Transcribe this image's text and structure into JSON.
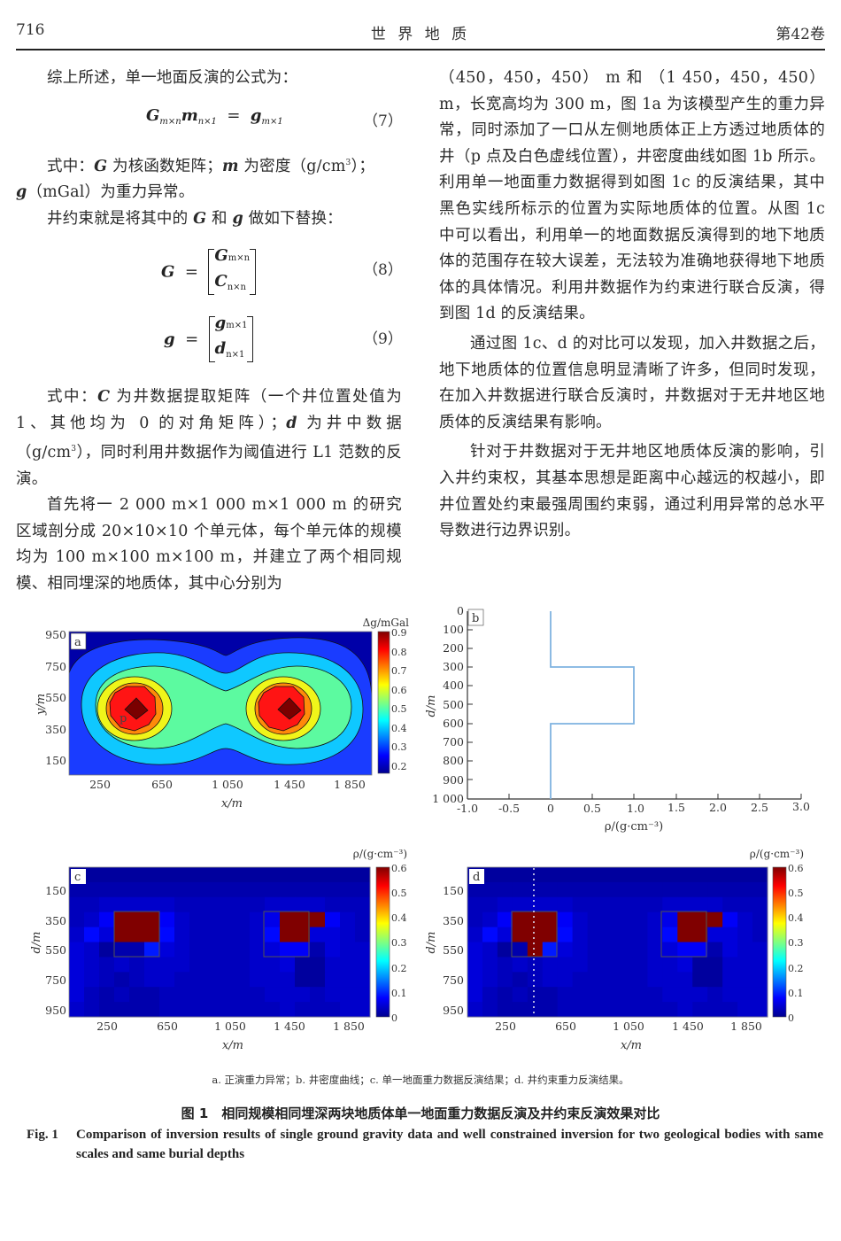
{
  "header": {
    "page_number": "716",
    "journal": "世 界 地 质",
    "volume": "第42卷"
  },
  "left_column": {
    "p1": "综上所述，单一地面反演的公式为：",
    "eq7": {
      "lhs_a": "G",
      "lhs_a_sub": "m×n",
      "lhs_b": "m",
      "lhs_b_sub": "n×1",
      "eq": "=",
      "rhs": "g",
      "rhs_sub": "m×1",
      "num": "（7）"
    },
    "p2_line1": "式中：G 为核函数矩阵；m 为密度（g/cm³）；",
    "p2_line1_parts": {
      "a": "式中：",
      "G": "G",
      "b": " 为核函数矩阵；",
      "m": "m",
      "c": " 为密度（g/cm",
      "sup": "3",
      "d": "）；"
    },
    "p2_line2_parts": {
      "g": "g",
      "a": "（mGal）为重力异常。"
    },
    "p3_parts": {
      "a": "井约束就是将其中的 ",
      "G": "G",
      "b": " 和 ",
      "g": "g",
      "c": " 做如下替换："
    },
    "eq8": {
      "lhs": "G",
      "eq": "=",
      "top": "G",
      "top_sub": "m×n",
      "bottom": "C",
      "bottom_sub": "n×n",
      "num": "（8）"
    },
    "eq9": {
      "lhs": "g",
      "eq": "=",
      "top": "g",
      "top_sub": "m×1",
      "bottom": "d",
      "bottom_sub": "n×1",
      "num": "（9）"
    },
    "p4_parts": {
      "a": "式中：",
      "C": "C",
      "b": " 为井数据提取矩阵（一个井位置处值为1、其他均为 0 的对角矩阵）；",
      "d": "d",
      "c": " 为井中数据（g/cm",
      "sup": "3",
      "e": "），同时利用井数据作为阈值进行 L1 范数的反演。"
    },
    "p5": "首先将一 2 000 m×1 000 m×1 000 m 的研究区域剖分成 20×10×10 个单元体，每个单元体的规模均为 100 m×100 m×100 m，并建立了两个相同规模、相同埋深的地质体，其中心分别为"
  },
  "right_column": {
    "p1": "（450，450，450） m 和 （1 450，450，450） m，长宽高均为 300 m，图 1a 为该模型产生的重力异常，同时添加了一口从左侧地质体正上方透过地质体的井（p 点及白色虚线位置），井密度曲线如图 1b 所示。利用单一地面重力数据得到如图 1c 的反演结果，其中黑色实线所标示的位置为实际地质体的位置。从图 1c 中可以看出，利用单一的地面数据反演得到的地下地质体的范围存在较大误差，无法较为准确地获得地下地质体的具体情况。利用井数据作为约束进行联合反演，得到图 1d 的反演结果。",
    "p2": "通过图 1c、d 的对比可以发现，加入井数据之后，地下地质体的位置信息明显清晰了许多，但同时发现，在加入井数据进行联合反演时，井数据对于无井地区地质体的反演结果有影响。",
    "p3": "针对于井数据对于无井地区地质体反演的影响，引入井约束权，其基本思想是距离中心越远的权越小，即井位置处约束最强周围约束弱，通过利用异常的总水平导数进行边界识别。"
  },
  "figure": {
    "subcaption": "a. 正演重力异常；b. 井密度曲线；c. 单一地面重力数据反演结果；d. 井约束重力反演结果。",
    "caption_cn": "图 1　相同规模相同埋深两块地质体单一地面重力数据反演及井约束反演效果对比",
    "caption_en_label": "Fig. 1",
    "caption_en": "Comparison of inversion results of single ground gravity data and well constrained inversion for two geological bodies with same scales and same burial depths"
  },
  "chart_data": [
    {
      "panel": "a",
      "type": "heatmap",
      "subtype": "filled-contour",
      "title": "正演重力异常",
      "xlabel": "x/m",
      "ylabel": "y/m",
      "x_ticks": [
        "250",
        "650",
        "1 050",
        "1 450",
        "1 850"
      ],
      "y_ticks": [
        "950",
        "750",
        "550",
        "350",
        "150"
      ],
      "xlim": [
        0,
        2000
      ],
      "ylim": [
        0,
        1000
      ],
      "colorbar_label": "Δg/mGal",
      "colorbar_ticks": [
        "0.9",
        "0.8",
        "0.7",
        "0.6",
        "0.5",
        "0.4",
        "0.3",
        "0.2"
      ],
      "colorbar_range": [
        0.15,
        0.9
      ],
      "peaks": [
        {
          "x": 450,
          "y": 450,
          "value": 0.9
        },
        {
          "x": 1450,
          "y": 450,
          "value": 0.9
        }
      ],
      "annotations": [
        {
          "text": "p",
          "x": 400,
          "y": 420
        }
      ],
      "contour_levels": [
        0.2,
        0.3,
        0.4,
        0.5,
        0.6,
        0.7,
        0.8,
        0.85
      ]
    },
    {
      "panel": "b",
      "type": "line",
      "title": "井密度曲线",
      "xlabel": "ρ/(g·cm⁻³)",
      "ylabel": "d/m",
      "x_ticks": [
        "-1.0",
        "-0.5",
        "0",
        "0.5",
        "1.0",
        "1.5",
        "2.0",
        "2.5",
        "3.0"
      ],
      "y_ticks": [
        "0",
        "100",
        "200",
        "300",
        "400",
        "500",
        "600",
        "700",
        "800",
        "900",
        "1 000"
      ],
      "xlim": [
        -1.0,
        3.0
      ],
      "ylim": [
        1000,
        0
      ],
      "series": [
        {
          "name": "well density",
          "color": "#7fb3e0",
          "x": [
            0,
            0,
            1,
            1,
            0,
            0
          ],
          "y": [
            0,
            300,
            300,
            600,
            600,
            1000
          ]
        }
      ]
    },
    {
      "panel": "c",
      "type": "heatmap",
      "title": "单一地面重力数据反演结果",
      "xlabel": "x/m",
      "ylabel": "d/m",
      "x_ticks": [
        "250",
        "650",
        "1 050",
        "1 450",
        "1 850"
      ],
      "y_ticks": [
        "150",
        "350",
        "550",
        "750",
        "950"
      ],
      "grid": {
        "cols": 20,
        "rows": 10
      },
      "colorbar_label": "ρ/(g·cm⁻³)",
      "colorbar_ticks": [
        "0.6",
        "0.5",
        "0.4",
        "0.3",
        "0.2",
        "0.1",
        "0"
      ],
      "colorbar_range": [
        0,
        0.6
      ],
      "true_bodies": [
        {
          "x0": 300,
          "x1": 600,
          "z0": 300,
          "z1": 600
        },
        {
          "x0": 1300,
          "x1": 1600,
          "z0": 300,
          "z1": 600
        }
      ],
      "values": [
        [
          0.01,
          0.01,
          0.01,
          0.01,
          0.01,
          0.01,
          0.01,
          0.01,
          0.01,
          0.01,
          0.01,
          0.01,
          0.01,
          0.01,
          0.01,
          0.01,
          0.01,
          0.01,
          0.01,
          0.01
        ],
        [
          0.02,
          0.02,
          0.02,
          0.02,
          0.02,
          0.02,
          0.02,
          0.02,
          0.02,
          0.02,
          0.02,
          0.02,
          0.02,
          0.02,
          0.02,
          0.02,
          0.02,
          0.02,
          0.02,
          0.02
        ],
        [
          0.03,
          0.03,
          0.04,
          0.04,
          0.04,
          0.04,
          0.04,
          0.03,
          0.03,
          0.03,
          0.03,
          0.03,
          0.03,
          0.04,
          0.04,
          0.04,
          0.04,
          0.03,
          0.03,
          0.03
        ],
        [
          0.03,
          0.04,
          0.07,
          0.6,
          0.6,
          0.6,
          0.07,
          0.04,
          0.03,
          0.03,
          0.03,
          0.03,
          0.04,
          0.06,
          0.6,
          0.6,
          0.6,
          0.07,
          0.04,
          0.03
        ],
        [
          0.04,
          0.08,
          0.05,
          0.6,
          0.6,
          0.6,
          0.08,
          0.04,
          0.03,
          0.03,
          0.03,
          0.03,
          0.04,
          0.08,
          0.6,
          0.6,
          0.05,
          0.05,
          0.04,
          0.03
        ],
        [
          0.05,
          0.04,
          0.01,
          0.02,
          0.02,
          0.09,
          0.05,
          0.04,
          0.03,
          0.03,
          0.03,
          0.03,
          0.04,
          0.05,
          0.07,
          0.07,
          0.02,
          0.05,
          0.04,
          0.04
        ],
        [
          0.05,
          0.04,
          0.03,
          0.04,
          0.03,
          0.04,
          0.04,
          0.04,
          0.03,
          0.03,
          0.03,
          0.03,
          0.04,
          0.04,
          0.05,
          0.01,
          0.01,
          0.04,
          0.04,
          0.04
        ],
        [
          0.05,
          0.04,
          0.03,
          0.02,
          0.03,
          0.04,
          0.04,
          0.03,
          0.03,
          0.03,
          0.03,
          0.03,
          0.04,
          0.04,
          0.04,
          0.01,
          0.01,
          0.04,
          0.04,
          0.04
        ],
        [
          0.05,
          0.03,
          0.02,
          0.03,
          0.02,
          0.02,
          0.03,
          0.03,
          0.03,
          0.03,
          0.03,
          0.03,
          0.03,
          0.04,
          0.04,
          0.04,
          0.03,
          0.04,
          0.04,
          0.04
        ],
        [
          0.04,
          0.03,
          0.02,
          0.02,
          0.02,
          0.02,
          0.03,
          0.03,
          0.03,
          0.03,
          0.03,
          0.03,
          0.03,
          0.03,
          0.04,
          0.03,
          0.03,
          0.03,
          0.04,
          0.04
        ]
      ]
    },
    {
      "panel": "d",
      "type": "heatmap",
      "title": "井约束重力反演结果",
      "xlabel": "x/m",
      "ylabel": "d/m",
      "x_ticks": [
        "250",
        "650",
        "1 050",
        "1 450",
        "1 850"
      ],
      "y_ticks": [
        "150",
        "350",
        "550",
        "750",
        "950"
      ],
      "grid": {
        "cols": 20,
        "rows": 10
      },
      "colorbar_label": "ρ/(g·cm⁻³)",
      "colorbar_ticks": [
        "0.6",
        "0.5",
        "0.4",
        "0.3",
        "0.2",
        "0.1",
        "0"
      ],
      "colorbar_range": [
        0,
        0.6
      ],
      "well_line_x": 450,
      "true_bodies": [
        {
          "x0": 300,
          "x1": 600,
          "z0": 300,
          "z1": 600
        },
        {
          "x0": 1300,
          "x1": 1600,
          "z0": 300,
          "z1": 600
        }
      ],
      "values": [
        [
          0.01,
          0.01,
          0.01,
          0.01,
          0.01,
          0.01,
          0.01,
          0.01,
          0.01,
          0.01,
          0.01,
          0.01,
          0.01,
          0.01,
          0.01,
          0.01,
          0.01,
          0.01,
          0.01,
          0.01
        ],
        [
          0.02,
          0.02,
          0.02,
          0.02,
          0.02,
          0.02,
          0.02,
          0.02,
          0.02,
          0.02,
          0.02,
          0.02,
          0.02,
          0.02,
          0.02,
          0.02,
          0.02,
          0.02,
          0.02,
          0.02
        ],
        [
          0.03,
          0.03,
          0.04,
          0.04,
          0.04,
          0.04,
          0.04,
          0.03,
          0.03,
          0.03,
          0.03,
          0.03,
          0.03,
          0.04,
          0.04,
          0.04,
          0.04,
          0.03,
          0.03,
          0.03
        ],
        [
          0.03,
          0.04,
          0.07,
          0.6,
          0.6,
          0.6,
          0.07,
          0.04,
          0.03,
          0.03,
          0.03,
          0.03,
          0.04,
          0.06,
          0.6,
          0.6,
          0.6,
          0.07,
          0.04,
          0.03
        ],
        [
          0.04,
          0.08,
          0.05,
          0.6,
          0.6,
          0.6,
          0.08,
          0.04,
          0.03,
          0.03,
          0.03,
          0.03,
          0.04,
          0.08,
          0.6,
          0.6,
          0.05,
          0.05,
          0.04,
          0.03
        ],
        [
          0.05,
          0.04,
          0.01,
          0.02,
          0.6,
          0.09,
          0.05,
          0.04,
          0.03,
          0.03,
          0.03,
          0.03,
          0.04,
          0.05,
          0.07,
          0.07,
          0.02,
          0.05,
          0.04,
          0.04
        ],
        [
          0.05,
          0.04,
          0.03,
          0.04,
          0.03,
          0.04,
          0.04,
          0.04,
          0.03,
          0.03,
          0.03,
          0.03,
          0.04,
          0.04,
          0.05,
          0.01,
          0.01,
          0.04,
          0.04,
          0.04
        ],
        [
          0.05,
          0.04,
          0.03,
          0.02,
          0.03,
          0.04,
          0.04,
          0.03,
          0.03,
          0.03,
          0.03,
          0.03,
          0.04,
          0.04,
          0.04,
          0.01,
          0.01,
          0.04,
          0.04,
          0.04
        ],
        [
          0.05,
          0.03,
          0.02,
          0.03,
          0.02,
          0.02,
          0.03,
          0.03,
          0.03,
          0.03,
          0.03,
          0.03,
          0.03,
          0.04,
          0.04,
          0.04,
          0.03,
          0.04,
          0.04,
          0.04
        ],
        [
          0.04,
          0.03,
          0.02,
          0.02,
          0.02,
          0.02,
          0.03,
          0.03,
          0.03,
          0.03,
          0.03,
          0.03,
          0.03,
          0.03,
          0.04,
          0.03,
          0.03,
          0.03,
          0.04,
          0.04
        ]
      ]
    }
  ],
  "panel_labels": {
    "a": "a",
    "b": "b",
    "c": "c",
    "d": "d"
  },
  "axis_text": {
    "a_xlabel": "x/m",
    "a_ylabel": "y/m",
    "a_cbar": "Δg/mGal",
    "b_xlabel": "ρ/(g·cm⁻³)",
    "b_ylabel": "d/m",
    "cd_xlabel": "x/m",
    "cd_ylabel": "d/m",
    "cd_cbar": "ρ/(g·cm⁻³)",
    "p_marker": "p"
  }
}
